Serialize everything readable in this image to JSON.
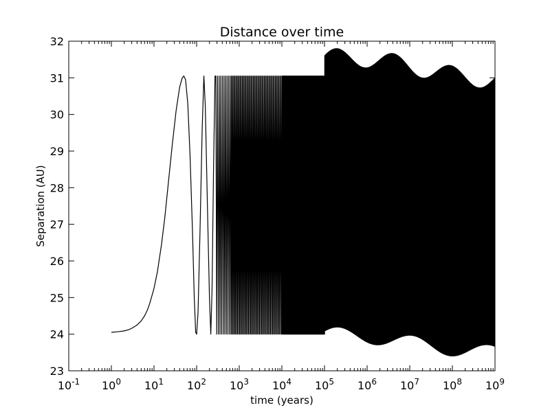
{
  "chart_data": {
    "type": "line",
    "title": "Distance over time",
    "xlabel": "time (years)",
    "ylabel": "Separation (AU)",
    "xscale": "log",
    "xlim": [
      0.1,
      1000000000
    ],
    "ylim": [
      23,
      32
    ],
    "x_ticks": [
      {
        "value": 0.1,
        "base": "10",
        "exp": "-1"
      },
      {
        "value": 1,
        "base": "10",
        "exp": "0"
      },
      {
        "value": 10,
        "base": "10",
        "exp": "1"
      },
      {
        "value": 100,
        "base": "10",
        "exp": "2"
      },
      {
        "value": 1000,
        "base": "10",
        "exp": "3"
      },
      {
        "value": 10000,
        "base": "10",
        "exp": "4"
      },
      {
        "value": 100000,
        "base": "10",
        "exp": "5"
      },
      {
        "value": 1000000,
        "base": "10",
        "exp": "6"
      },
      {
        "value": 10000000,
        "base": "10",
        "exp": "7"
      },
      {
        "value": 100000000,
        "base": "10",
        "exp": "8"
      },
      {
        "value": 1000000000,
        "base": "10",
        "exp": "9"
      }
    ],
    "y_ticks": [
      23,
      24,
      25,
      26,
      27,
      28,
      29,
      30,
      31,
      32
    ],
    "grid": false,
    "line_color": "#000000",
    "series": [
      {
        "oscillation": {
          "min": 24.0,
          "max": 31.05
        },
        "points": [
          [
            1,
            24.05
          ],
          [
            1.5,
            24.07
          ],
          [
            2,
            24.09
          ],
          [
            2.5,
            24.12
          ],
          [
            3,
            24.16
          ],
          [
            4,
            24.25
          ],
          [
            5,
            24.36
          ],
          [
            6,
            24.5
          ],
          [
            7,
            24.66
          ],
          [
            8,
            24.85
          ],
          [
            10,
            25.25
          ],
          [
            12,
            25.7
          ],
          [
            15,
            26.45
          ],
          [
            18,
            27.2
          ],
          [
            22,
            28.2
          ],
          [
            27,
            29.2
          ],
          [
            33,
            30.1
          ],
          [
            40,
            30.75
          ],
          [
            46,
            31.0
          ],
          [
            50,
            31.05
          ],
          [
            55,
            30.95
          ],
          [
            62,
            30.3
          ],
          [
            70,
            28.9
          ],
          [
            80,
            26.8
          ],
          [
            88,
            25.0
          ],
          [
            95,
            24.05
          ],
          [
            100,
            24.0
          ],
          [
            108,
            24.6
          ],
          [
            120,
            26.8
          ],
          [
            135,
            29.6
          ],
          [
            148,
            31.05
          ],
          [
            160,
            30.2
          ],
          [
            180,
            27.4
          ],
          [
            200,
            25.0
          ],
          [
            215,
            24.0
          ],
          [
            230,
            25.2
          ],
          [
            250,
            28.6
          ],
          [
            270,
            31.05
          ]
        ]
      }
    ]
  }
}
